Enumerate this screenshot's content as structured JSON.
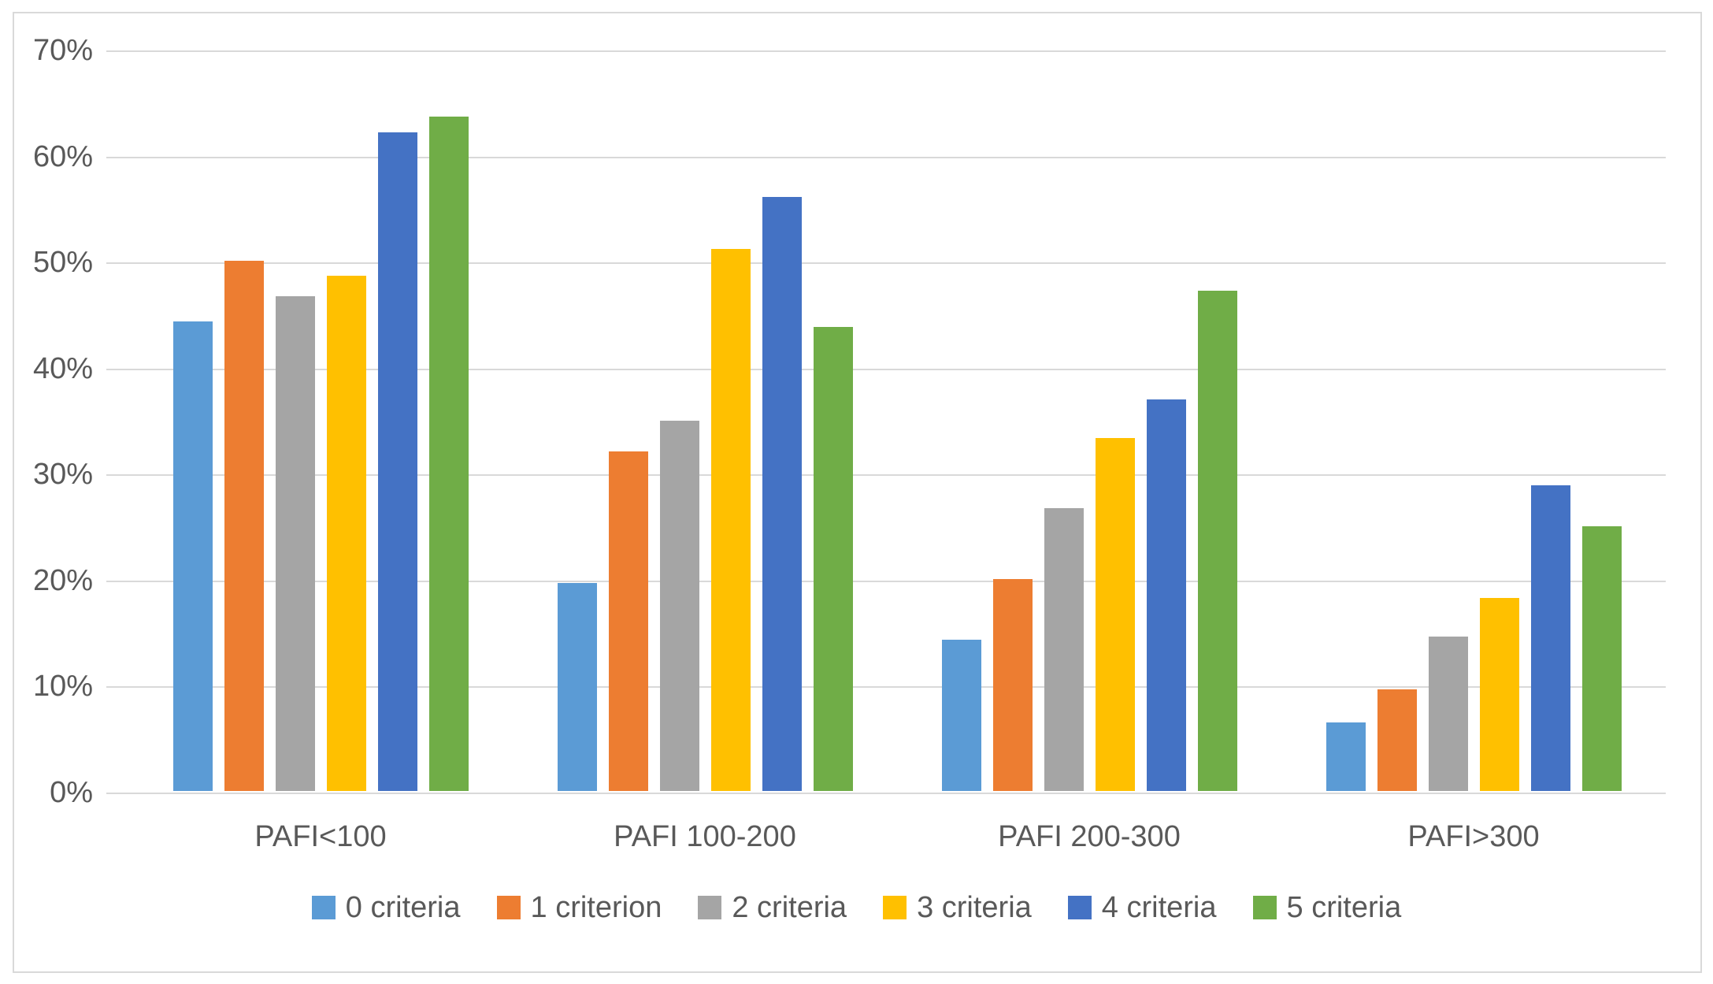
{
  "chart_data": {
    "type": "bar",
    "title": "",
    "categories": [
      "PAFI<100",
      "PAFI 100-200",
      "PAFI 200-300",
      "PAFI>300"
    ],
    "series": [
      {
        "name": "0 criteria",
        "color": "#5B9BD5",
        "values": [
          44.3,
          19.6,
          14.3,
          6.5
        ]
      },
      {
        "name": "1 criterion",
        "color": "#ED7D31",
        "values": [
          50.0,
          32.0,
          20.0,
          9.6
        ]
      },
      {
        "name": "2 criteria",
        "color": "#A5A5A5",
        "values": [
          46.7,
          34.9,
          26.7,
          14.6
        ]
      },
      {
        "name": "3 criteria",
        "color": "#FFC000",
        "values": [
          48.6,
          51.1,
          33.3,
          18.2
        ]
      },
      {
        "name": "4 criteria",
        "color": "#4472C4",
        "values": [
          62.1,
          56.0,
          36.9,
          28.8
        ]
      },
      {
        "name": "5 criteria",
        "color": "#70AD47",
        "values": [
          63.6,
          43.8,
          47.2,
          25.0
        ]
      }
    ],
    "y_axis": {
      "min": 0,
      "max": 70,
      "step": 10,
      "tick_labels": [
        "0%",
        "10%",
        "20%",
        "30%",
        "40%",
        "50%",
        "60%",
        "70%"
      ]
    },
    "xlabel": "",
    "ylabel": "",
    "grid": true,
    "legend_position": "bottom"
  },
  "colors": {
    "background": "#FFFFFF",
    "gridline": "#D9D9D9",
    "axis_text": "#595959",
    "chart_border": "#D9D9D9"
  }
}
